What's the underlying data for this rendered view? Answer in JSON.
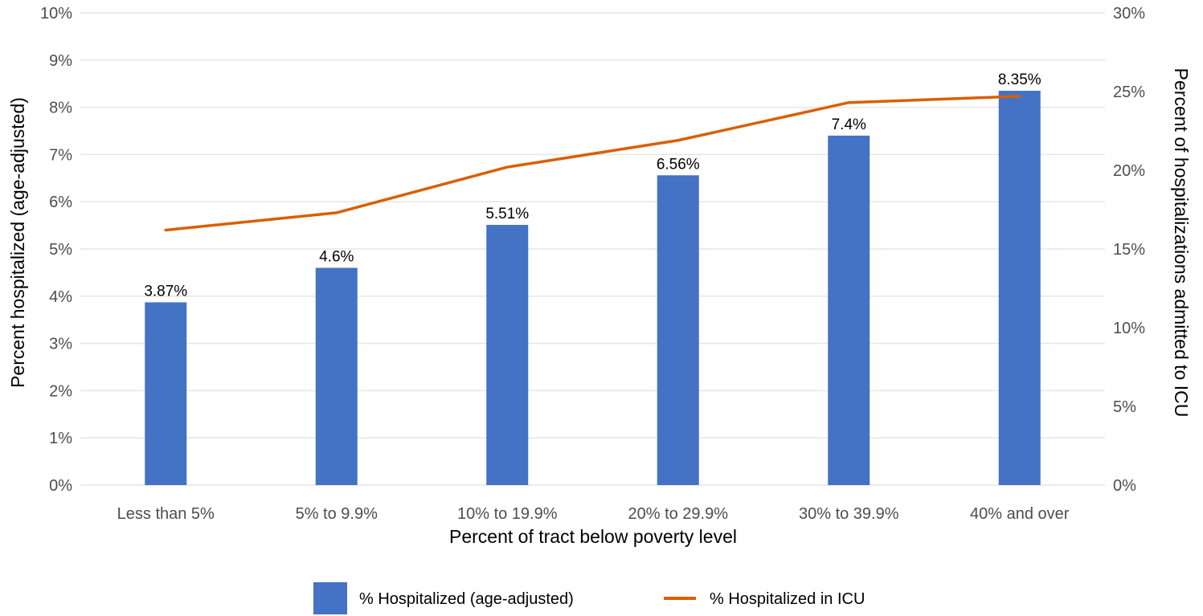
{
  "chart_data": {
    "type": "bar",
    "categories": [
      "Less than 5%",
      "5% to 9.9%",
      "10% to 19.9%",
      "20% to 29.9%",
      "30% to 39.9%",
      "40% and over"
    ],
    "series": [
      {
        "name": "% Hospitalized (age-adjusted)",
        "type": "bar",
        "axis": "left",
        "values": [
          3.87,
          4.6,
          5.51,
          6.56,
          7.4,
          8.35
        ],
        "data_labels": [
          "3.87%",
          "4.6%",
          "5.51%",
          "6.56%",
          "7.4%",
          "8.35%"
        ],
        "color": "#4472C4"
      },
      {
        "name": "% Hospitalized in ICU",
        "type": "line",
        "axis": "right",
        "values": [
          16.2,
          17.3,
          20.2,
          21.9,
          24.3,
          24.7
        ],
        "color": "#D95F02"
      }
    ],
    "xlabel": "Percent of tract below poverty level",
    "ylabel": "Percent hospitalized (age-adjusted)",
    "y2label": "Percent of hospitalizations admitted to ICU",
    "ylim": [
      0,
      10
    ],
    "y2lim": [
      0,
      30
    ],
    "yticks": [
      "0%",
      "1%",
      "2%",
      "3%",
      "4%",
      "5%",
      "6%",
      "7%",
      "8%",
      "9%",
      "10%"
    ],
    "y2ticks": [
      "0%",
      "5%",
      "10%",
      "15%",
      "20%",
      "25%",
      "30%"
    ],
    "grid": true,
    "legend_position": "bottom"
  }
}
